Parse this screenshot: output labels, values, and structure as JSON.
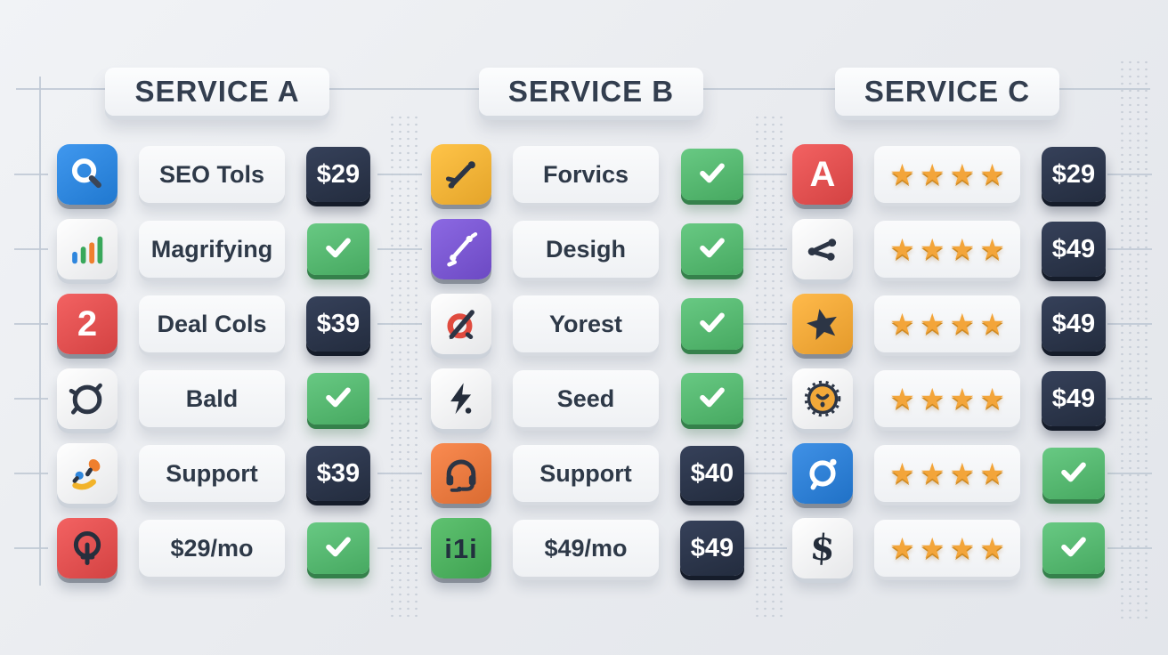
{
  "board_title": "pricing-comparison",
  "symbols": {
    "star": "★"
  },
  "colors": {
    "price_badge_bg": "#2a3345",
    "price_text": "#ffffff",
    "check_green": "#55b86f",
    "star_gold": "#f2a43a",
    "header_text": "#333e4f",
    "label_text": "#2e3948",
    "guide_line": "#bec8d3"
  },
  "columns": [
    {
      "id": "service-a",
      "header": "SERVICE A",
      "rows": [
        {
          "icon": {
            "name": "search-icon",
            "bg": "#2e86dd"
          },
          "feature": {
            "type": "label",
            "text": "SEO Tols"
          },
          "value": {
            "type": "price",
            "text": "$29"
          }
        },
        {
          "icon": {
            "name": "bar-chart-icon",
            "bg": "#f4f5f7"
          },
          "feature": {
            "type": "label",
            "text": "Magrifying"
          },
          "value": {
            "type": "check"
          }
        },
        {
          "icon": {
            "name": "number-2-icon",
            "bg": "#e15050",
            "glyph": "2",
            "glyph_color": "#ffffff"
          },
          "feature": {
            "type": "label",
            "text": "Deal Cols"
          },
          "value": {
            "type": "price",
            "text": "$39"
          }
        },
        {
          "icon": {
            "name": "circle-outline-icon",
            "bg": "#f4f5f7"
          },
          "feature": {
            "type": "label",
            "text": "Bald"
          },
          "value": {
            "type": "check"
          }
        },
        {
          "icon": {
            "name": "paint-brush-icon",
            "bg": "#f4f5f7"
          },
          "feature": {
            "type": "label",
            "text": "Support"
          },
          "value": {
            "type": "price",
            "text": "$39"
          }
        },
        {
          "icon": {
            "name": "gauge-icon",
            "bg": "#e15050"
          },
          "feature": {
            "type": "label",
            "text": "$29/mo"
          },
          "value": {
            "type": "check"
          }
        }
      ]
    },
    {
      "id": "service-b",
      "header": "SERVICE B",
      "rows": [
        {
          "icon": {
            "name": "tools-icon",
            "bg": "#f2b237"
          },
          "feature": {
            "type": "label",
            "text": "Forvics"
          },
          "value": {
            "type": "check"
          }
        },
        {
          "icon": {
            "name": "vector-pen-icon",
            "bg": "#7a57d1"
          },
          "feature": {
            "type": "label",
            "text": "Desigh"
          },
          "value": {
            "type": "check"
          }
        },
        {
          "icon": {
            "name": "target-pen-icon",
            "bg": "#f4f5f7"
          },
          "feature": {
            "type": "label",
            "text": "Yorest"
          },
          "value": {
            "type": "check"
          }
        },
        {
          "icon": {
            "name": "lightning-icon",
            "bg": "#f4f5f7"
          },
          "feature": {
            "type": "label",
            "text": "Seed"
          },
          "value": {
            "type": "check"
          }
        },
        {
          "icon": {
            "name": "headset-icon",
            "bg": "#e8793f"
          },
          "feature": {
            "type": "label",
            "text": "Support"
          },
          "value": {
            "type": "price",
            "text": "$40"
          }
        },
        {
          "icon": {
            "name": "stats-icon",
            "bg": "#4db05f",
            "glyph": "i1i",
            "glyph_color": "#22303e"
          },
          "feature": {
            "type": "label",
            "text": "$49/mo"
          },
          "value": {
            "type": "price",
            "text": "$49"
          }
        }
      ]
    },
    {
      "id": "service-c",
      "header": "SERVICE C",
      "rows": [
        {
          "icon": {
            "name": "letter-a-icon",
            "bg": "#e15050",
            "glyph": "A",
            "glyph_color": "#ffffff"
          },
          "feature": {
            "type": "stars",
            "count": 4
          },
          "value": {
            "type": "price",
            "text": "$29"
          }
        },
        {
          "icon": {
            "name": "share-icon",
            "bg": "#f4f5f7"
          },
          "feature": {
            "type": "stars",
            "count": 4
          },
          "value": {
            "type": "price",
            "text": "$49"
          }
        },
        {
          "icon": {
            "name": "star-icon",
            "bg": "#f2a839"
          },
          "feature": {
            "type": "stars",
            "count": 4
          },
          "value": {
            "type": "price",
            "text": "$49"
          }
        },
        {
          "icon": {
            "name": "badge-face-icon",
            "bg": "#f4f5f7"
          },
          "feature": {
            "type": "stars",
            "count": 4
          },
          "value": {
            "type": "price",
            "text": "$49"
          }
        },
        {
          "icon": {
            "name": "search-circle-icon",
            "bg": "#2e7fd4"
          },
          "feature": {
            "type": "stars",
            "count": 4
          },
          "value": {
            "type": "check"
          }
        },
        {
          "icon": {
            "name": "dollar-icon",
            "bg": "#f4f5f7",
            "glyph": "$",
            "glyph_color": "#242d3b"
          },
          "feature": {
            "type": "stars",
            "count": 4
          },
          "value": {
            "type": "check"
          }
        }
      ]
    }
  ]
}
